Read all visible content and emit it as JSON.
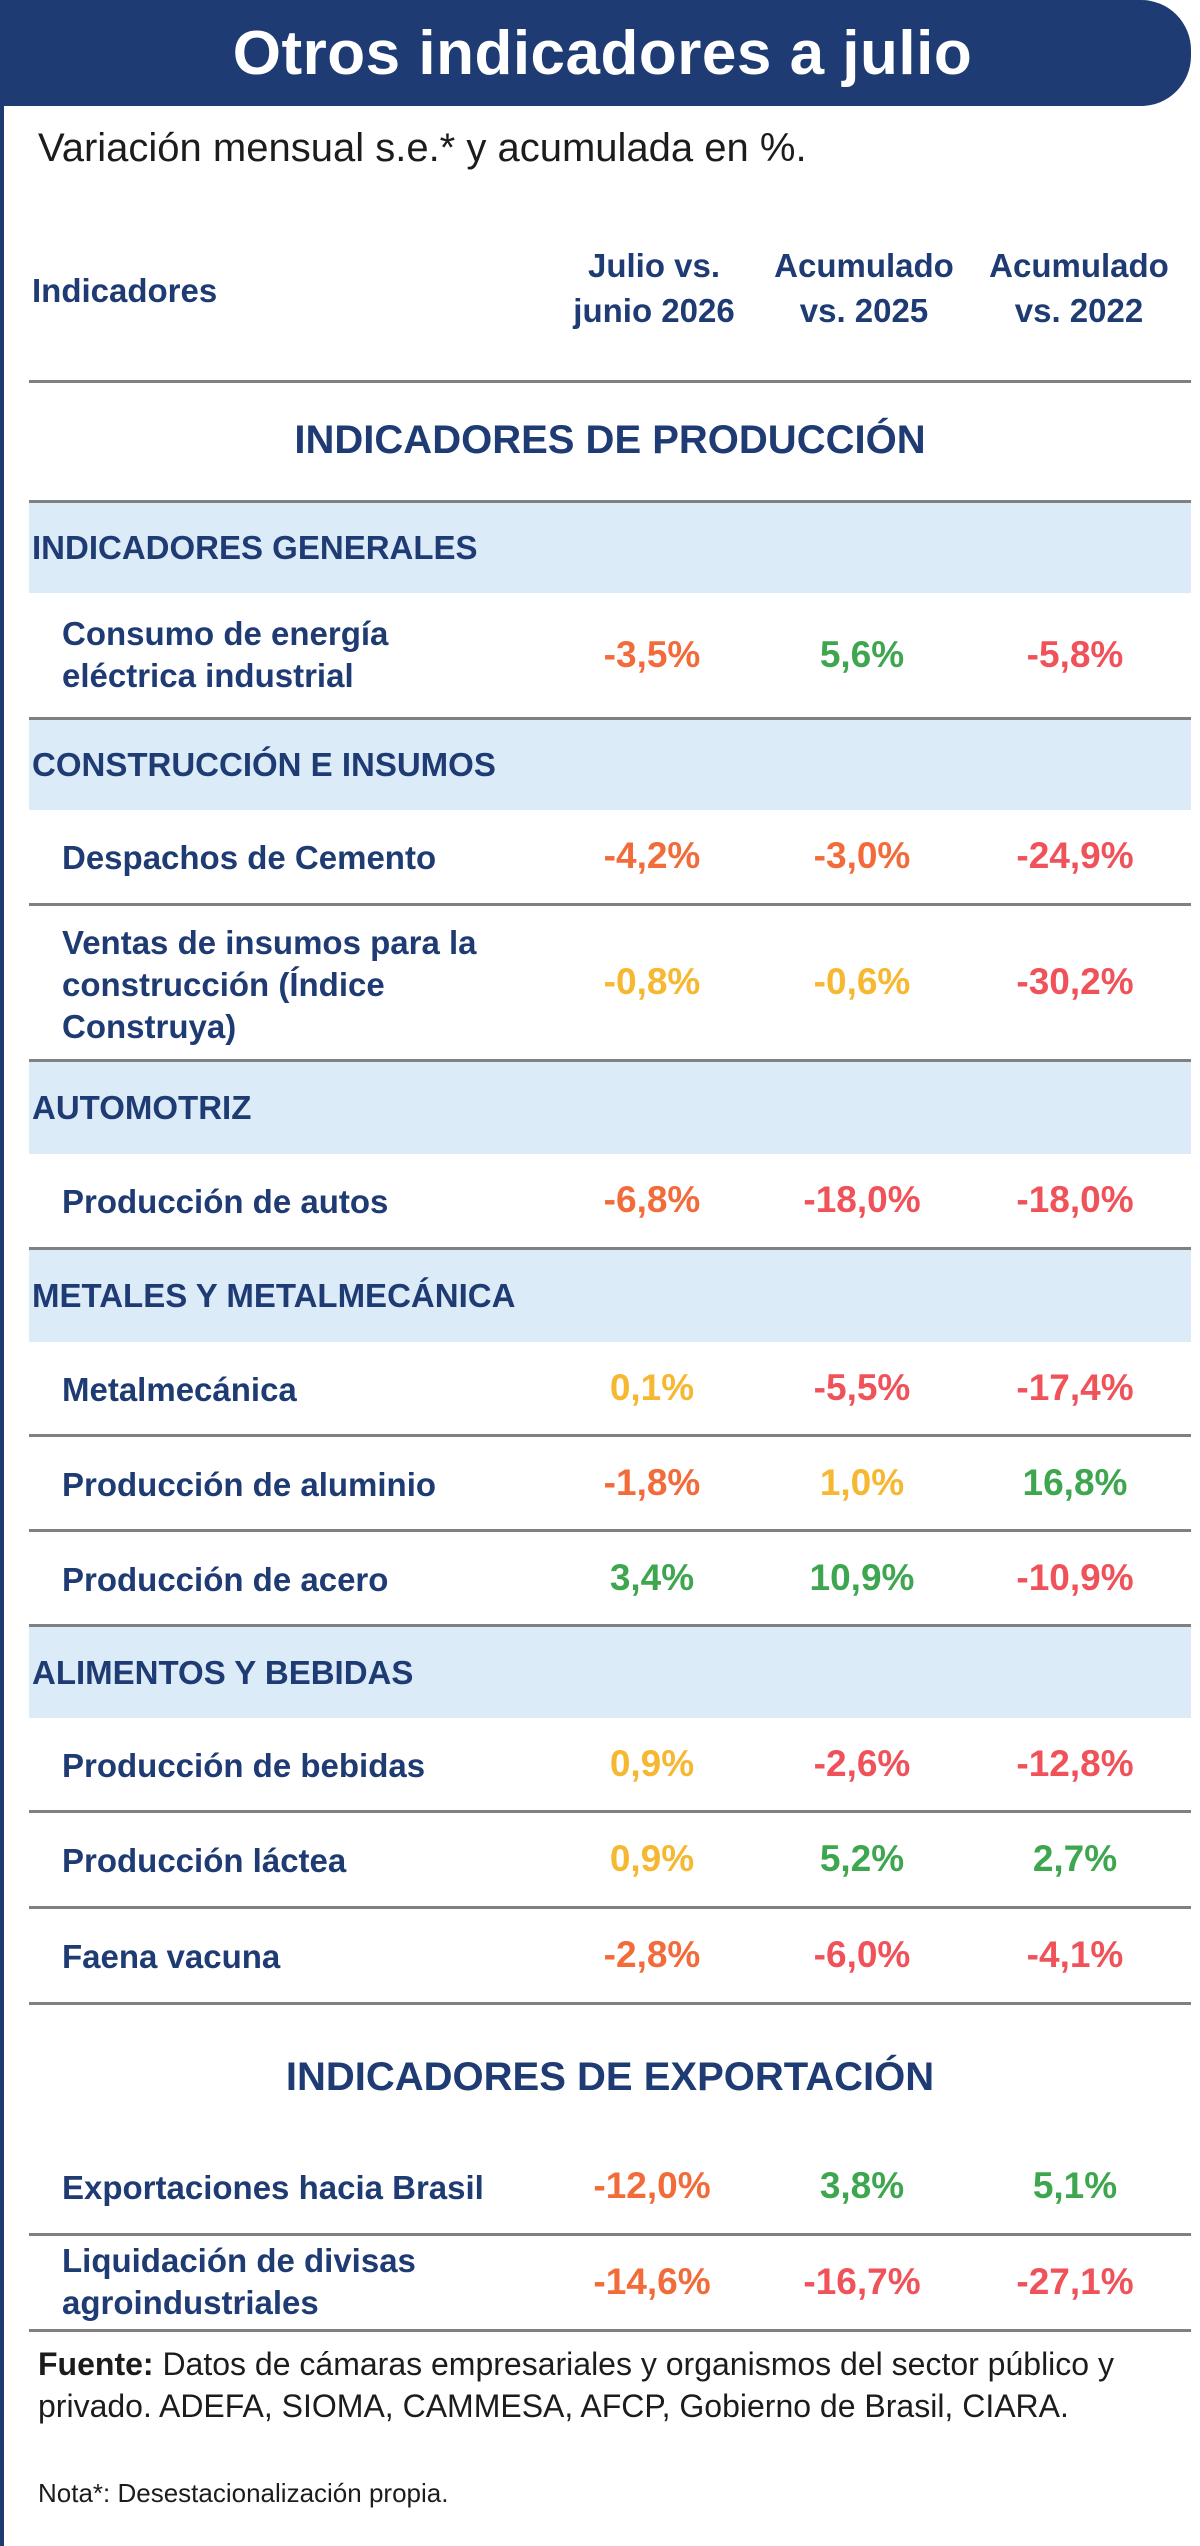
{
  "title": "Otros indicadores a julio",
  "subtitle": "Variación mensual s.e.* y acumulada en %.",
  "columns": {
    "indicator": "Indicadores",
    "c1_line1": "Julio vs.",
    "c1_line2": "junio 2026",
    "c2_line1": "Acumulado",
    "c2_line2": "vs. 2025",
    "c3_line1": "Acumulado",
    "c3_line2": "vs. 2022"
  },
  "colors": {
    "orange": "#f26b3a",
    "red": "#f0525a",
    "yellow": "#f6b731",
    "green": "#3fa650",
    "navy": "#1f3b73",
    "category_bg": "#dcebf8"
  },
  "production": {
    "title": "INDICADORES DE PRODUCCIÓN",
    "categories": [
      {
        "name": "INDICADORES GENERALES",
        "rows": [
          {
            "label_l1": "Consumo de energía",
            "label_l2": "eléctrica industrial",
            "v1": "-3,5%",
            "v2": "5,6%",
            "v3": "-5,8%"
          }
        ]
      },
      {
        "name": "CONSTRUCCIÓN E INSUMOS",
        "rows": [
          {
            "label_l1": "Despachos de Cemento",
            "v1": "-4,2%",
            "v2": "-3,0%",
            "v3": "-24,9%"
          },
          {
            "label_l1": "Ventas de insumos para la",
            "label_l2": "construcción (Índice",
            "label_l3": "Construya)",
            "v1": "-0,8%",
            "v2": "-0,6%",
            "v3": "-30,2%"
          }
        ]
      },
      {
        "name": "AUTOMOTRIZ",
        "rows": [
          {
            "label_l1": "Producción de autos",
            "v1": "-6,8%",
            "v2": "-18,0%",
            "v3": "-18,0%"
          }
        ]
      },
      {
        "name": "METALES Y METALMECÁNICA",
        "rows": [
          {
            "label_l1": "Metalmecánica",
            "v1": "0,1%",
            "v2": "-5,5%",
            "v3": "-17,4%"
          },
          {
            "label_l1": "Producción de aluminio",
            "v1": "-1,8%",
            "v2": "1,0%",
            "v3": "16,8%"
          },
          {
            "label_l1": "Producción de acero",
            "v1": "3,4%",
            "v2": "10,9%",
            "v3": "-10,9%"
          }
        ]
      },
      {
        "name": "ALIMENTOS Y BEBIDAS",
        "rows": [
          {
            "label_l1": "Producción de bebidas",
            "v1": "0,9%",
            "v2": "-2,6%",
            "v3": "-12,8%"
          },
          {
            "label_l1": "Producción láctea",
            "v1": "0,9%",
            "v2": "5,2%",
            "v3": "2,7%"
          },
          {
            "label_l1": "Faena vacuna",
            "v1": "-2,8%",
            "v2": "-6,0%",
            "v3": "-4,1%"
          }
        ]
      }
    ]
  },
  "export": {
    "title": "INDICADORES DE EXPORTACIÓN",
    "rows": [
      {
        "label_l1": "Exportaciones hacia Brasil",
        "v1": "-12,0%",
        "v2": "3,8%",
        "v3": "5,1%"
      },
      {
        "label_l1": "Liquidación de divisas",
        "label_l2": "agroindustriales",
        "v1": "-14,6%",
        "v2": "-16,7%",
        "v3": "-27,1%"
      }
    ]
  },
  "footer": {
    "source_label": "Fuente:",
    "source_text": " Datos de cámaras empresariales y organismos del sector público y privado. ADEFA, SIOMA, CAMMESA, AFCP, Gobierno de Brasil, CIARA.",
    "note": "Nota*:  Desestacionalización propia."
  }
}
